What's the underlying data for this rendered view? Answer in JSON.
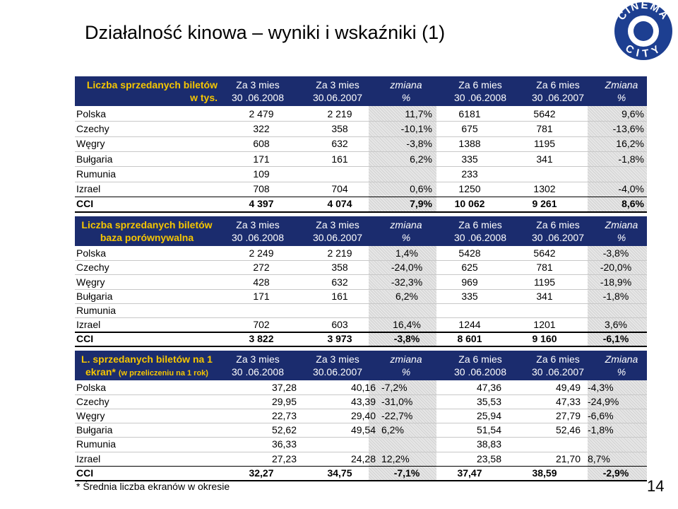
{
  "title": "Działalność kinowa – wyniki i wskaźniki (1)",
  "logo": {
    "top": "CINEMA",
    "bottom": "CITY"
  },
  "tables": [
    {
      "header": [
        [
          "Liczba sprzedanych biletów",
          "w tys."
        ],
        [
          "Za 3 mies",
          "30 .06.2008"
        ],
        [
          "Za 3 mies",
          "30.06.2007"
        ],
        [
          "zmiana",
          "%"
        ],
        [
          "Za 6 mies",
          "30 .06.2008"
        ],
        [
          "Za 6 mies",
          "30 .06.2007"
        ],
        [
          "Zmiana",
          "%"
        ]
      ],
      "rows": [
        [
          "Polska",
          "2 479",
          "2 219",
          "11,7%",
          "6181",
          "5642",
          "9,6%"
        ],
        [
          "Czechy",
          "322",
          "358",
          "-10,1%",
          "675",
          "781",
          "-13,6%"
        ],
        [
          "Węgry",
          "608",
          "632",
          "-3,8%",
          "1388",
          "1195",
          "16,2%"
        ],
        [
          "Bułgaria",
          "171",
          "161",
          "6,2%",
          "335",
          "341",
          "-1,8%"
        ],
        [
          "Rumunia",
          "109",
          null,
          null,
          "233",
          null,
          null
        ],
        [
          "Izrael",
          "708",
          "704",
          "0,6%",
          "1250",
          "1302",
          "-4,0%"
        ],
        [
          "CCI",
          "4 397",
          "4 074",
          "7,9%",
          "10 062",
          "9 261",
          "8,6%"
        ]
      ]
    },
    {
      "header": [
        [
          "Liczba sprzedanych biletów",
          "baza porównywalna"
        ],
        [
          "Za 3 mies",
          "30 .06.2008"
        ],
        [
          "Za 3 mies",
          "30.06.2007"
        ],
        [
          "zmiana",
          "%"
        ],
        [
          "Za 6 mies",
          "30 .06.2008"
        ],
        [
          "Za 6 mies",
          "30 .06.2007"
        ],
        [
          "Zmiana",
          "%"
        ]
      ],
      "rows": [
        [
          "Polska",
          "2 249",
          "2 219",
          "1,4%",
          "5428",
          "5642",
          "-3,8%"
        ],
        [
          "Czechy",
          "272",
          "358",
          "-24,0%",
          "625",
          "781",
          "-20,0%"
        ],
        [
          "Węgry",
          "428",
          "632",
          "-32,3%",
          "969",
          "1195",
          "-18,9%"
        ],
        [
          "Bułgaria",
          "171",
          "161",
          "6,2%",
          "335",
          "341",
          "-1,8%"
        ],
        [
          "Rumunia",
          null,
          null,
          null,
          null,
          null,
          null
        ],
        [
          "Izrael",
          "702",
          "603",
          "16,4%",
          "1244",
          "1201",
          "3,6%"
        ],
        [
          "CCI",
          "3 822",
          "3 973",
          "-3,8%",
          "8 601",
          "9 160",
          "-6,1%"
        ]
      ]
    },
    {
      "header": [
        [
          "L. sprzedanych biletów na 1",
          "ekran*",
          "(w przeliczeniu na 1 rok)"
        ],
        [
          "Za 3 mies",
          "30 .06.2008"
        ],
        [
          "Za 3 mies",
          "30.06.2007"
        ],
        [
          "zmiana",
          "%"
        ],
        [
          "Za 6 mies",
          "30 .06.2008"
        ],
        [
          "Za 6 mies",
          "30 .06.2007"
        ],
        [
          "Zmiana",
          "%"
        ]
      ],
      "rows": [
        [
          "Polska",
          "37,28",
          "40,16",
          "-7,2%",
          "47,36",
          "49,49",
          "-4,3%"
        ],
        [
          "Czechy",
          "29,95",
          "43,39",
          "-31,0%",
          "35,53",
          "47,33",
          "-24,9%"
        ],
        [
          "Węgry",
          "22,73",
          "29,40",
          "-22,7%",
          "25,94",
          "27,79",
          "-6,6%"
        ],
        [
          "Bułgaria",
          "52,62",
          "49,54",
          "6,2%",
          "51,54",
          "52,46",
          "-1,8%"
        ],
        [
          "Rumunia",
          "36,33",
          null,
          null,
          "38,83",
          null,
          null
        ],
        [
          "Izrael",
          "27,23",
          "24,28",
          "12,2%",
          "23,58",
          "21,70",
          "8,7%"
        ],
        [
          "CCI",
          "32,27",
          "34,75",
          "-7,1%",
          "37,47",
          "38,59",
          "-2,9%"
        ]
      ]
    }
  ],
  "footnote": "* Średnia liczba ekranów w okresie",
  "page_number": "14"
}
